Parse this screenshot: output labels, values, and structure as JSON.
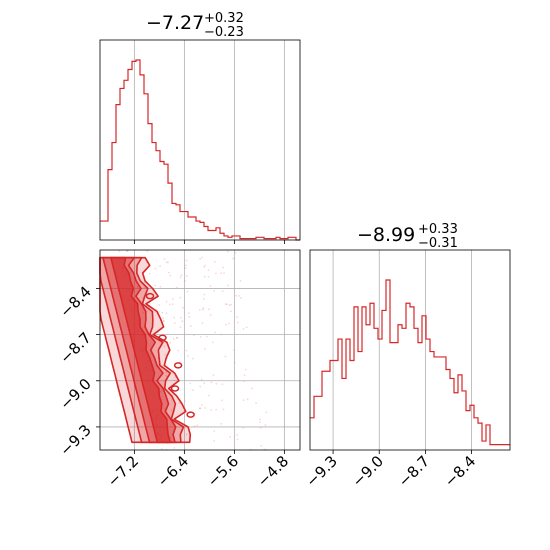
{
  "colors": {
    "series": "#d62728",
    "grid": "#b0b0b0",
    "axes": "#000000"
  },
  "chart_data": [
    {
      "type": "histogram",
      "panel": "top-left",
      "title": {
        "main": "−7.27",
        "sup": "+0.32",
        "sub": "−0.23"
      },
      "xlim": [
        -7.75,
        -4.55
      ],
      "xticks": [
        -7.2,
        -6.4,
        -5.6,
        -4.8
      ],
      "grid": true,
      "bins": {
        "start": -7.75,
        "width": 0.064
      },
      "counts": [
        14,
        14,
        52,
        72,
        100,
        112,
        118,
        126,
        132,
        133,
        122,
        108,
        86,
        72,
        66,
        58,
        56,
        42,
        27,
        26,
        21,
        21,
        17,
        17,
        14,
        13,
        10,
        7,
        7,
        9,
        5,
        3,
        2,
        3,
        3,
        1,
        1,
        1,
        1,
        2,
        2,
        1,
        1,
        1,
        2,
        1,
        1,
        2,
        2,
        0
      ]
    },
    {
      "type": "contour",
      "panel": "bottom-left",
      "xlim": [
        -7.75,
        -4.55
      ],
      "ylim": [
        -9.45,
        -8.15
      ],
      "xticks": [
        -7.2,
        -6.4,
        -5.6,
        -4.8
      ],
      "xtick_labels": [
        "−7.2",
        "−6.4",
        "−5.6",
        "−4.8"
      ],
      "yticks": [
        -8.4,
        -8.7,
        -9.0,
        -9.3
      ],
      "ytick_labels": [
        "−8.4",
        "−8.7",
        "−9.0",
        "−9.3"
      ],
      "grid": true,
      "levels": 4
    },
    {
      "type": "histogram",
      "panel": "bottom-right",
      "title": {
        "main": "−8.99",
        "sup": "+0.33",
        "sub": "−0.31"
      },
      "xlim": [
        -9.45,
        -8.15
      ],
      "xticks": [
        -9.3,
        -9.0,
        -8.7,
        -8.4
      ],
      "xtick_labels": [
        "−9.3",
        "−9.0",
        "−8.7",
        "−8.4"
      ],
      "grid": true,
      "bins": {
        "start": -9.45,
        "width": 0.026
      },
      "counts": [
        18,
        30,
        30,
        44,
        44,
        50,
        50,
        62,
        40,
        62,
        50,
        80,
        55,
        80,
        70,
        82,
        68,
        62,
        78,
        95,
        60,
        60,
        70,
        68,
        82,
        80,
        68,
        60,
        75,
        62,
        55,
        52,
        52,
        52,
        45,
        40,
        32,
        42,
        33,
        22,
        25,
        18,
        15,
        5,
        14,
        3,
        3,
        3,
        3,
        3,
        3
      ]
    }
  ]
}
